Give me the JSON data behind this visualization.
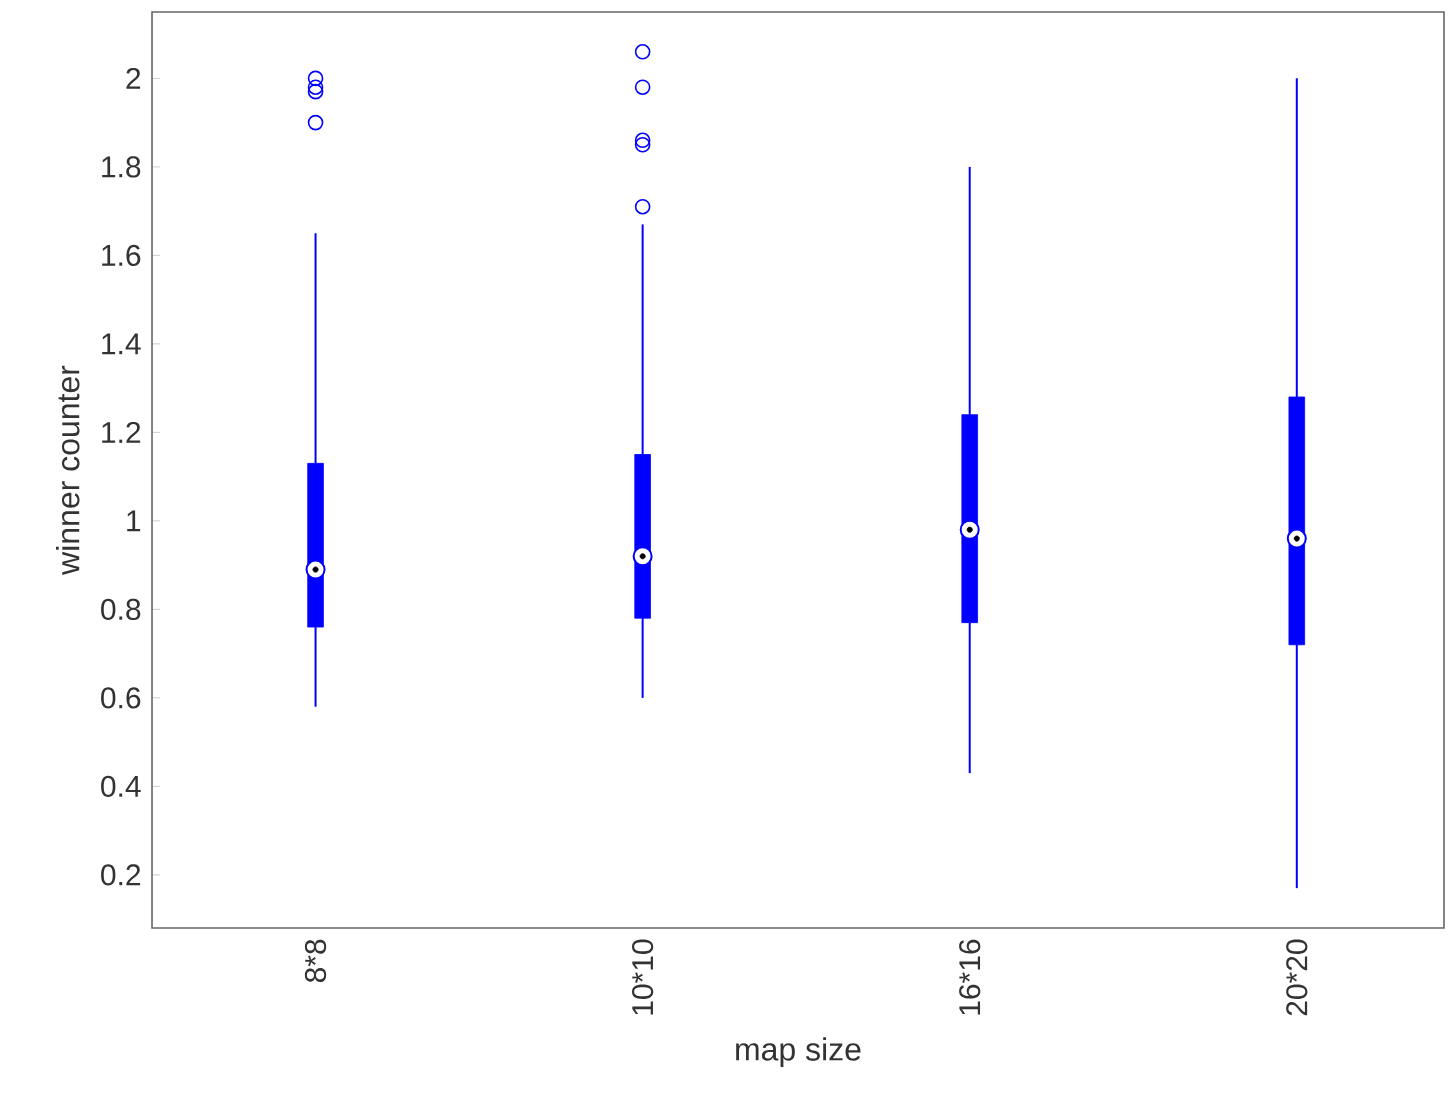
{
  "chart_data": {
    "type": "box",
    "xlabel": "map size",
    "ylabel": "winner counter",
    "categories": [
      "8*8",
      "10*10",
      "16*16",
      "20*20"
    ],
    "color": "#0000ff",
    "boxes": [
      {
        "low": 0.58,
        "q1": 0.76,
        "median": 0.89,
        "q3": 1.13,
        "high": 1.65,
        "outliers": [
          1.9,
          1.97,
          1.98,
          2.0
        ]
      },
      {
        "low": 0.6,
        "q1": 0.78,
        "median": 0.92,
        "q3": 1.15,
        "high": 1.67,
        "outliers": [
          1.71,
          1.85,
          1.86,
          1.98,
          2.06
        ]
      },
      {
        "low": 0.43,
        "q1": 0.77,
        "median": 0.98,
        "q3": 1.24,
        "high": 1.8
      },
      {
        "low": 0.17,
        "q1": 0.72,
        "median": 0.96,
        "q3": 1.28,
        "high": 2.0
      }
    ],
    "ylim": [
      0.08,
      2.15
    ],
    "yticks": [
      0.2,
      0.4,
      0.6,
      0.8,
      1,
      1.2,
      1.4,
      1.6,
      1.8,
      2
    ]
  }
}
